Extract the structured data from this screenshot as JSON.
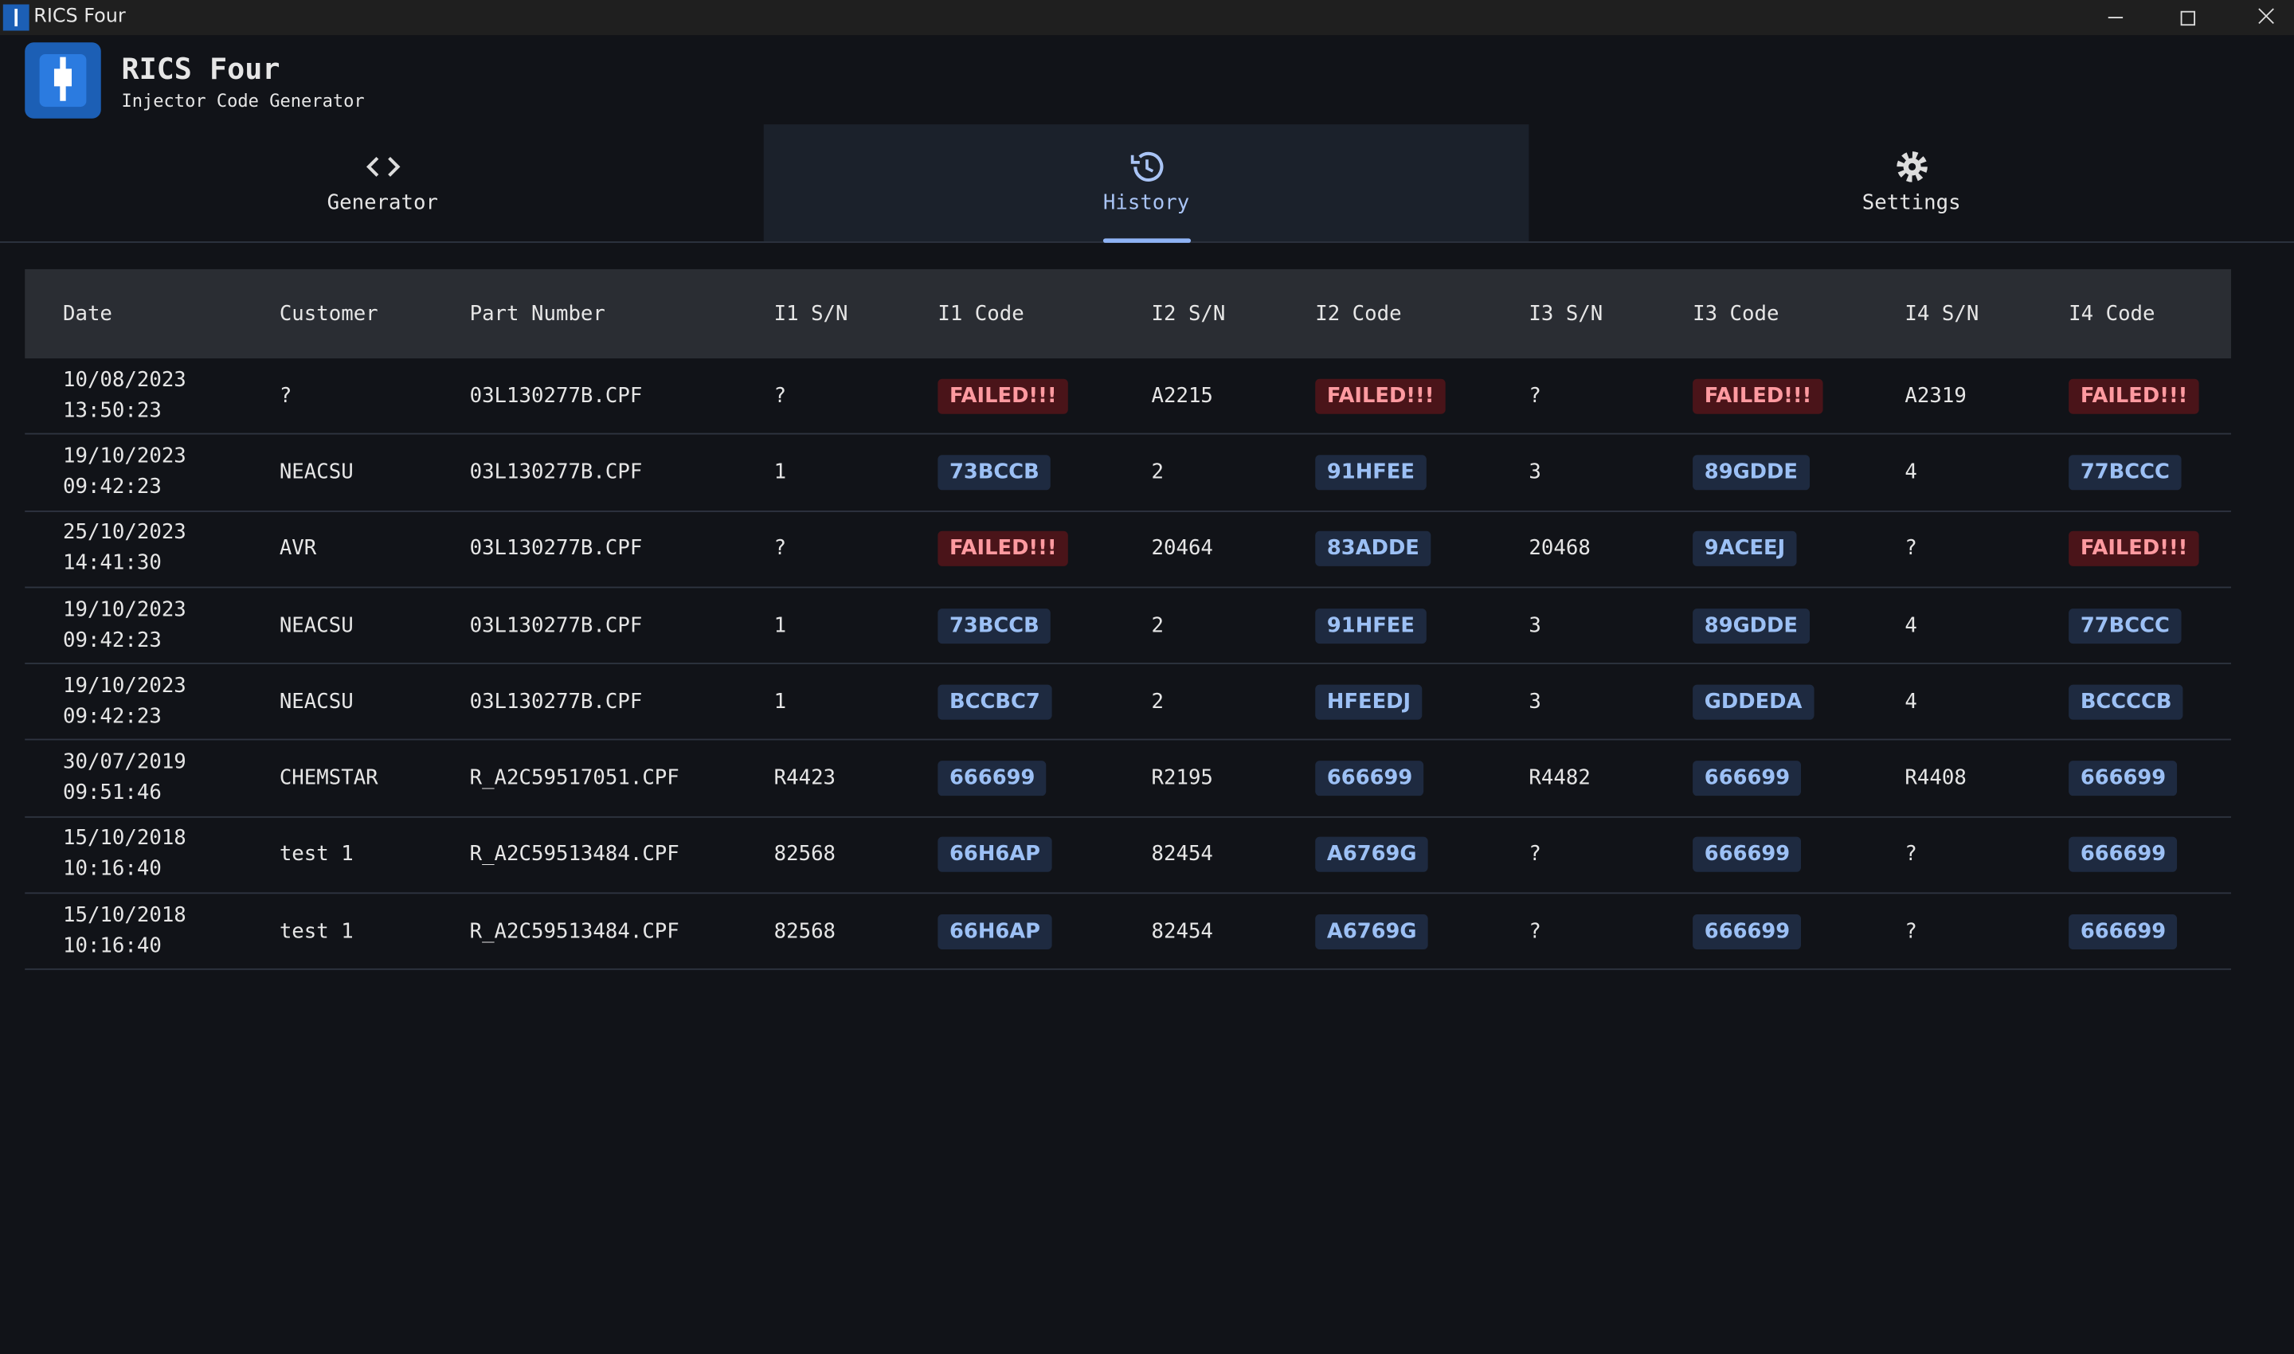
{
  "window": {
    "title": "RICS Four"
  },
  "header": {
    "title": "RICS Four",
    "subtitle": "Injector Code Generator"
  },
  "tabs": [
    "Generator",
    "History",
    "Settings"
  ],
  "table": {
    "columns": [
      "Date",
      "Customer",
      "Part Number",
      "I1 S/N",
      "I1 Code",
      "I2 S/N",
      "I2 Code",
      "I3 S/N",
      "I3 Code",
      "I4 S/N",
      "I4 Code"
    ],
    "rows": [
      [
        "10/08/2023 13:50:23",
        "?",
        "03L130277B.CPF",
        "?",
        {
          "text": "FAILED!!!",
          "color": "red"
        },
        "A2215",
        {
          "text": "FAILED!!!",
          "color": "red"
        },
        "?",
        {
          "text": "FAILED!!!",
          "color": "red"
        },
        "A2319",
        {
          "text": "FAILED!!!",
          "color": "red"
        }
      ],
      [
        "19/10/2023 09:42:23",
        "NEACSU",
        "03L130277B.CPF",
        "1",
        {
          "text": "73BCCB",
          "color": "blue"
        },
        "2",
        {
          "text": "91HFEE",
          "color": "blue"
        },
        "3",
        {
          "text": "89GDDE",
          "color": "blue"
        },
        "4",
        {
          "text": "77BCCC",
          "color": "blue"
        }
      ],
      [
        "25/10/2023 14:41:30",
        "AVR",
        "03L130277B.CPF",
        "?",
        {
          "text": "FAILED!!!",
          "color": "red"
        },
        "20464",
        {
          "text": "83ADDE",
          "color": "blue"
        },
        "20468",
        {
          "text": "9ACEEJ",
          "color": "blue"
        },
        "?",
        {
          "text": "FAILED!!!",
          "color": "red"
        }
      ],
      [
        "19/10/2023 09:42:23",
        "NEACSU",
        "03L130277B.CPF",
        "1",
        {
          "text": "73BCCB",
          "color": "blue"
        },
        "2",
        {
          "text": "91HFEE",
          "color": "blue"
        },
        "3",
        {
          "text": "89GDDE",
          "color": "blue"
        },
        "4",
        {
          "text": "77BCCC",
          "color": "blue"
        }
      ],
      [
        "19/10/2023 09:42:23",
        "NEACSU",
        "03L130277B.CPF",
        "1",
        {
          "text": "BCCBC7",
          "color": "blue"
        },
        "2",
        {
          "text": "HFEEDJ",
          "color": "blue"
        },
        "3",
        {
          "text": "GDDEDA",
          "color": "blue"
        },
        "4",
        {
          "text": "BCCCCB",
          "color": "blue"
        }
      ],
      [
        "30/07/2019 09:51:46",
        "CHEMSTAR",
        "R_A2C59517051.CPF",
        "R4423",
        {
          "text": "666699",
          "color": "blue"
        },
        "R2195",
        {
          "text": "666699",
          "color": "blue"
        },
        "R4482",
        {
          "text": "666699",
          "color": "blue"
        },
        "R4408",
        {
          "text": "666699",
          "color": "blue"
        }
      ],
      [
        "15/10/2018 10:16:40",
        "test 1",
        "R_A2C59513484.CPF",
        "82568",
        {
          "text": "66H6AP",
          "color": "blue"
        },
        "82454",
        {
          "text": "A6769G",
          "color": "blue"
        },
        "?",
        {
          "text": "666699",
          "color": "blue"
        },
        "?",
        {
          "text": "666699",
          "color": "blue"
        }
      ],
      [
        "15/10/2018 10:16:40",
        "test 1",
        "R_A2C59513484.CPF",
        "82568",
        {
          "text": "66H6AP",
          "color": "blue"
        },
        "82454",
        {
          "text": "A6769G",
          "color": "blue"
        },
        "?",
        {
          "text": "666699",
          "color": "blue"
        },
        "?",
        {
          "text": "666699",
          "color": "blue"
        }
      ]
    ]
  }
}
